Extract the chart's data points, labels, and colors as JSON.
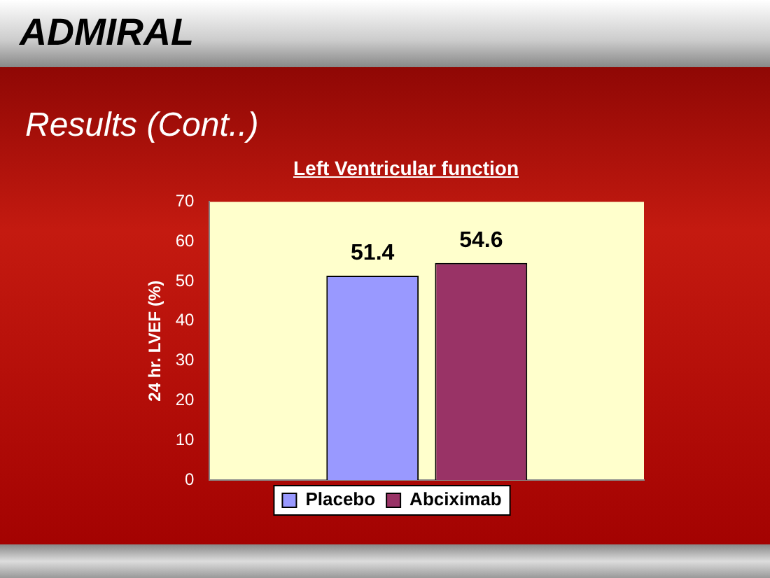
{
  "chart_data": {
    "type": "bar",
    "title": "Left Ventricular function",
    "ylabel": "24 hr. LVEF (%)",
    "annotations": [
      "ADMIRAL",
      "Results (Cont..)"
    ],
    "categories": [
      null
    ],
    "series": [
      {
        "name": "Placebo",
        "color": "#9999ff",
        "values": [
          51.4
        ]
      },
      {
        "name": "Abciximab",
        "color": "#993366",
        "values": [
          54.6
        ]
      }
    ],
    "ylim": [
      0,
      70
    ],
    "yticks": [
      0,
      10,
      20,
      30,
      40,
      50,
      60,
      70
    ],
    "grid": false,
    "legend": "bottom",
    "data_labels": true
  }
}
